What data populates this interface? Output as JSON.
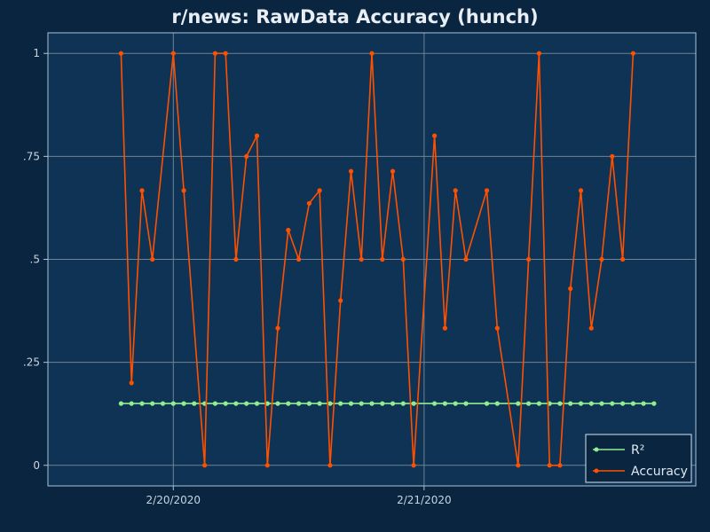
{
  "chart_data": {
    "type": "line",
    "title": "r/news: RawData Accuracy (hunch)",
    "xlabel": "",
    "ylabel": "",
    "ylim": [
      -0.05,
      1.05
    ],
    "y_ticks": [
      {
        "value": 1,
        "label": "1"
      },
      {
        "value": 0.75,
        "label": ".75"
      },
      {
        "value": 0.5,
        "label": ".5"
      },
      {
        "value": 0.25,
        "label": ".25"
      },
      {
        "value": 0,
        "label": "0"
      }
    ],
    "x_ticks": [
      {
        "value": "2020-02-20T00:00",
        "label": "2/20/2020"
      },
      {
        "value": "2020-02-21T00:00",
        "label": "2/21/2020"
      }
    ],
    "xlim": [
      "2020-02-19T12:00",
      "2020-02-22T02:00"
    ],
    "grid": true,
    "legend_position": "bottom-right",
    "series": [
      {
        "name": "R²",
        "color": "#90ee90",
        "points": [
          [
            "2020-02-19T19:00",
            0.15
          ],
          [
            "2020-02-19T20:00",
            0.15
          ],
          [
            "2020-02-19T21:00",
            0.15
          ],
          [
            "2020-02-19T22:00",
            0.15
          ],
          [
            "2020-02-19T23:00",
            0.15
          ],
          [
            "2020-02-20T00:00",
            0.15
          ],
          [
            "2020-02-20T01:00",
            0.15
          ],
          [
            "2020-02-20T02:00",
            0.15
          ],
          [
            "2020-02-20T03:00",
            0.15
          ],
          [
            "2020-02-20T04:00",
            0.15
          ],
          [
            "2020-02-20T05:00",
            0.15
          ],
          [
            "2020-02-20T06:00",
            0.15
          ],
          [
            "2020-02-20T07:00",
            0.15
          ],
          [
            "2020-02-20T08:00",
            0.15
          ],
          [
            "2020-02-20T09:00",
            0.15
          ],
          [
            "2020-02-20T10:00",
            0.15
          ],
          [
            "2020-02-20T11:00",
            0.15
          ],
          [
            "2020-02-20T12:00",
            0.15
          ],
          [
            "2020-02-20T13:00",
            0.15
          ],
          [
            "2020-02-20T14:00",
            0.15
          ],
          [
            "2020-02-20T15:00",
            0.15
          ],
          [
            "2020-02-20T16:00",
            0.15
          ],
          [
            "2020-02-20T17:00",
            0.15
          ],
          [
            "2020-02-20T18:00",
            0.15
          ],
          [
            "2020-02-20T19:00",
            0.15
          ],
          [
            "2020-02-20T20:00",
            0.15
          ],
          [
            "2020-02-20T21:00",
            0.15
          ],
          [
            "2020-02-20T22:00",
            0.15
          ],
          [
            "2020-02-20T23:00",
            0.15
          ],
          [
            "2020-02-21T01:00",
            0.15
          ],
          [
            "2020-02-21T02:00",
            0.15
          ],
          [
            "2020-02-21T03:00",
            0.15
          ],
          [
            "2020-02-21T04:00",
            0.15
          ],
          [
            "2020-02-21T06:00",
            0.15
          ],
          [
            "2020-02-21T07:00",
            0.15
          ],
          [
            "2020-02-21T09:00",
            0.15
          ],
          [
            "2020-02-21T10:00",
            0.15
          ],
          [
            "2020-02-21T11:00",
            0.15
          ],
          [
            "2020-02-21T12:00",
            0.15
          ],
          [
            "2020-02-21T13:00",
            0.15
          ],
          [
            "2020-02-21T14:00",
            0.15
          ],
          [
            "2020-02-21T15:00",
            0.15
          ],
          [
            "2020-02-21T16:00",
            0.15
          ],
          [
            "2020-02-21T17:00",
            0.15
          ],
          [
            "2020-02-21T18:00",
            0.15
          ],
          [
            "2020-02-21T19:00",
            0.15
          ],
          [
            "2020-02-21T20:00",
            0.15
          ],
          [
            "2020-02-21T21:00",
            0.15
          ],
          [
            "2020-02-21T22:00",
            0.15
          ]
        ]
      },
      {
        "name": "Accuracy",
        "color": "#ff5000",
        "points": [
          [
            "2020-02-19T19:00",
            1
          ],
          [
            "2020-02-19T20:00",
            0.2
          ],
          [
            "2020-02-19T21:00",
            0.667
          ],
          [
            "2020-02-19T22:00",
            0.5
          ],
          [
            "2020-02-20T00:00",
            1
          ],
          [
            "2020-02-20T01:00",
            0.667
          ],
          [
            "2020-02-20T03:00",
            0
          ],
          [
            "2020-02-20T04:00",
            1
          ],
          [
            "2020-02-20T05:00",
            1
          ],
          [
            "2020-02-20T06:00",
            0.5
          ],
          [
            "2020-02-20T07:00",
            0.75
          ],
          [
            "2020-02-20T08:00",
            0.8
          ],
          [
            "2020-02-20T09:00",
            0
          ],
          [
            "2020-02-20T10:00",
            0.333
          ],
          [
            "2020-02-20T11:00",
            0.571
          ],
          [
            "2020-02-20T12:00",
            0.5
          ],
          [
            "2020-02-20T13:00",
            0.636
          ],
          [
            "2020-02-20T14:00",
            0.667
          ],
          [
            "2020-02-20T15:00",
            0
          ],
          [
            "2020-02-20T16:00",
            0.4
          ],
          [
            "2020-02-20T17:00",
            0.714
          ],
          [
            "2020-02-20T18:00",
            0.5
          ],
          [
            "2020-02-20T19:00",
            1
          ],
          [
            "2020-02-20T20:00",
            0.5
          ],
          [
            "2020-02-20T21:00",
            0.714
          ],
          [
            "2020-02-20T22:00",
            0.5
          ],
          [
            "2020-02-20T23:00",
            0
          ],
          [
            "2020-02-21T01:00",
            0.8
          ],
          [
            "2020-02-21T02:00",
            0.333
          ],
          [
            "2020-02-21T03:00",
            0.667
          ],
          [
            "2020-02-21T04:00",
            0.5
          ],
          [
            "2020-02-21T06:00",
            0.667
          ],
          [
            "2020-02-21T07:00",
            0.333
          ],
          [
            "2020-02-21T09:00",
            0
          ],
          [
            "2020-02-21T10:00",
            0.5
          ],
          [
            "2020-02-21T11:00",
            1
          ],
          [
            "2020-02-21T12:00",
            0
          ],
          [
            "2020-02-21T13:00",
            0
          ],
          [
            "2020-02-21T14:00",
            0.429
          ],
          [
            "2020-02-21T15:00",
            0.667
          ],
          [
            "2020-02-21T16:00",
            0.333
          ],
          [
            "2020-02-21T17:00",
            0.5
          ],
          [
            "2020-02-21T18:00",
            0.75
          ],
          [
            "2020-02-21T19:00",
            0.5
          ],
          [
            "2020-02-21T20:00",
            1
          ]
        ]
      }
    ]
  },
  "colors": {
    "background": "#0a2540",
    "plot_background": "#0f3354",
    "grid": "#6f8294",
    "axis_frame": "#a9c3da"
  }
}
